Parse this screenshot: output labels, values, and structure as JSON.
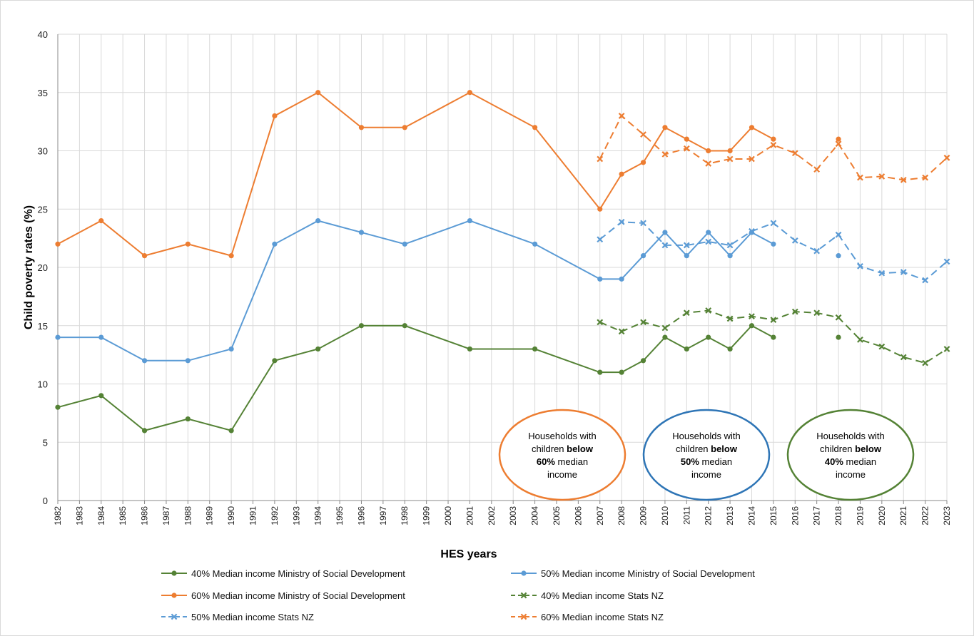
{
  "chart_data": {
    "type": "line",
    "title": "",
    "xlabel": "HES years",
    "ylabel": "Child poverty rates (%)",
    "ylim": [
      0,
      40
    ],
    "yticks": [
      0,
      5,
      10,
      15,
      20,
      25,
      30,
      35,
      40
    ],
    "x_categories": [
      "1982",
      "1983",
      "1984",
      "1985",
      "1986",
      "1987",
      "1988",
      "1989",
      "1990",
      "1991",
      "1992",
      "1993",
      "1994",
      "1995",
      "1996",
      "1997",
      "1998",
      "1999",
      "2000",
      "2001",
      "2002",
      "2003",
      "2004",
      "2005",
      "2006",
      "2007",
      "2008",
      "2009",
      "2010",
      "2011",
      "2012",
      "2013",
      "2014",
      "2015",
      "2016",
      "2017",
      "2018",
      "2019",
      "2020",
      "2021",
      "2022",
      "2023"
    ],
    "grid": true,
    "legend_position": "bottom",
    "series": [
      {
        "name": "40% Median income Ministry of Social Development",
        "color": "#548235",
        "dashed": false,
        "marker": "circle",
        "segments": [
          {
            "x": [
              "1982",
              "1984",
              "1986",
              "1988",
              "1990",
              "1992",
              "1994",
              "1996",
              "1998",
              "2001",
              "2004",
              "2007",
              "2008",
              "2009",
              "2010",
              "2011",
              "2012",
              "2013",
              "2014",
              "2015"
            ],
            "y": [
              8,
              9,
              6,
              7,
              6,
              12,
              13,
              15,
              15,
              13,
              13,
              11,
              11,
              12,
              14,
              13,
              14,
              13,
              15,
              14
            ]
          },
          {
            "x": [
              "2018"
            ],
            "y": [
              14
            ]
          }
        ]
      },
      {
        "name": "50% Median income Ministry of Social Development",
        "color": "#5b9bd5",
        "dashed": false,
        "marker": "circle",
        "segments": [
          {
            "x": [
              "1982",
              "1984",
              "1986",
              "1988",
              "1990",
              "1992",
              "1994",
              "1996",
              "1998",
              "2001",
              "2004",
              "2007",
              "2008",
              "2009",
              "2010",
              "2011",
              "2012",
              "2013",
              "2014",
              "2015"
            ],
            "y": [
              14,
              14,
              12,
              12,
              13,
              22,
              24,
              23,
              22,
              24,
              22,
              19,
              19,
              21,
              23,
              21,
              23,
              21,
              23,
              22
            ]
          },
          {
            "x": [
              "2018"
            ],
            "y": [
              21
            ]
          }
        ]
      },
      {
        "name": "60% Median income Ministry of Social Development",
        "color": "#ed7d31",
        "dashed": false,
        "marker": "circle",
        "segments": [
          {
            "x": [
              "1982",
              "1984",
              "1986",
              "1988",
              "1990",
              "1992",
              "1994",
              "1996",
              "1998",
              "2001",
              "2004",
              "2007",
              "2008",
              "2009",
              "2010",
              "2011",
              "2012",
              "2013",
              "2014",
              "2015"
            ],
            "y": [
              22,
              24,
              21,
              22,
              21,
              33,
              35,
              32,
              32,
              35,
              32,
              25,
              28,
              29,
              32,
              31,
              30,
              30,
              32,
              31
            ]
          },
          {
            "x": [
              "2018"
            ],
            "y": [
              31
            ]
          }
        ]
      },
      {
        "name": "40% Median income Stats NZ",
        "color": "#548235",
        "dashed": true,
        "marker": "x",
        "segments": [
          {
            "x": [
              "2007",
              "2008",
              "2009",
              "2010",
              "2011",
              "2012",
              "2013",
              "2014",
              "2015",
              "2016",
              "2017",
              "2018",
              "2019",
              "2020",
              "2021",
              "2022",
              "2023"
            ],
            "y": [
              15.3,
              14.5,
              15.3,
              14.8,
              16.1,
              16.3,
              15.6,
              15.8,
              15.5,
              16.2,
              16.1,
              15.7,
              13.8,
              13.2,
              12.3,
              11.8,
              13.0
            ]
          }
        ]
      },
      {
        "name": "50% Median income Stats NZ",
        "color": "#5b9bd5",
        "dashed": true,
        "marker": "x",
        "segments": [
          {
            "x": [
              "2007",
              "2008",
              "2009",
              "2010",
              "2011",
              "2012",
              "2013",
              "2014",
              "2015",
              "2016",
              "2017",
              "2018",
              "2019",
              "2020",
              "2021",
              "2022",
              "2023"
            ],
            "y": [
              22.4,
              23.9,
              23.8,
              21.9,
              21.9,
              22.2,
              21.9,
              23.1,
              23.8,
              22.3,
              21.4,
              22.8,
              20.1,
              19.5,
              19.6,
              18.9,
              20.5
            ]
          }
        ]
      },
      {
        "name": "60% Median income Stats NZ",
        "color": "#ed7d31",
        "dashed": true,
        "marker": "x",
        "segments": [
          {
            "x": [
              "2007",
              "2008",
              "2009",
              "2010",
              "2011",
              "2012",
              "2013",
              "2014",
              "2015",
              "2016",
              "2017",
              "2018",
              "2019",
              "2020",
              "2021",
              "2022",
              "2023"
            ],
            "y": [
              29.3,
              33.0,
              31.4,
              29.7,
              30.2,
              28.9,
              29.3,
              29.3,
              30.5,
              29.8,
              28.4,
              30.6,
              27.7,
              27.8,
              27.5,
              27.7,
              29.4
            ]
          }
        ]
      }
    ],
    "annotations": [
      {
        "color": "#ed7d31",
        "lines": [
          [
            "Households with"
          ],
          [
            "children ",
            "below"
          ],
          [
            "60%",
            " median"
          ],
          [
            "income"
          ]
        ]
      },
      {
        "color": "#2e75b6",
        "lines": [
          [
            "Households with"
          ],
          [
            "children ",
            "below"
          ],
          [
            "50%",
            " median"
          ],
          [
            "income"
          ]
        ]
      },
      {
        "color": "#548235",
        "lines": [
          [
            "Households with"
          ],
          [
            "children ",
            "below"
          ],
          [
            "40%",
            " median"
          ],
          [
            "income"
          ]
        ]
      }
    ]
  }
}
